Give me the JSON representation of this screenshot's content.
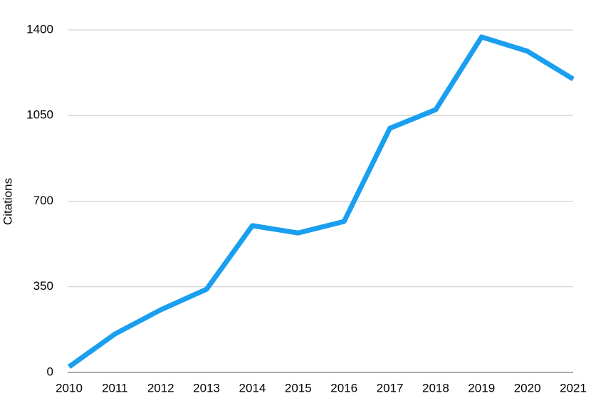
{
  "chart_data": {
    "type": "line",
    "y_label": "Citations",
    "categories": [
      "2010",
      "2011",
      "2012",
      "2013",
      "2014",
      "2015",
      "2016",
      "2017",
      "2018",
      "2019",
      "2020",
      "2021"
    ],
    "series": [
      {
        "name": "Citations",
        "color": "#1a9ff0",
        "values": [
          23,
          157,
          256,
          340,
          600,
          570,
          617,
          998,
          1074,
          1371,
          1313,
          1199
        ]
      }
    ],
    "ylim": [
      0,
      1400
    ],
    "yticks": [
      0,
      350,
      700,
      1050,
      1400
    ],
    "grid": true
  }
}
